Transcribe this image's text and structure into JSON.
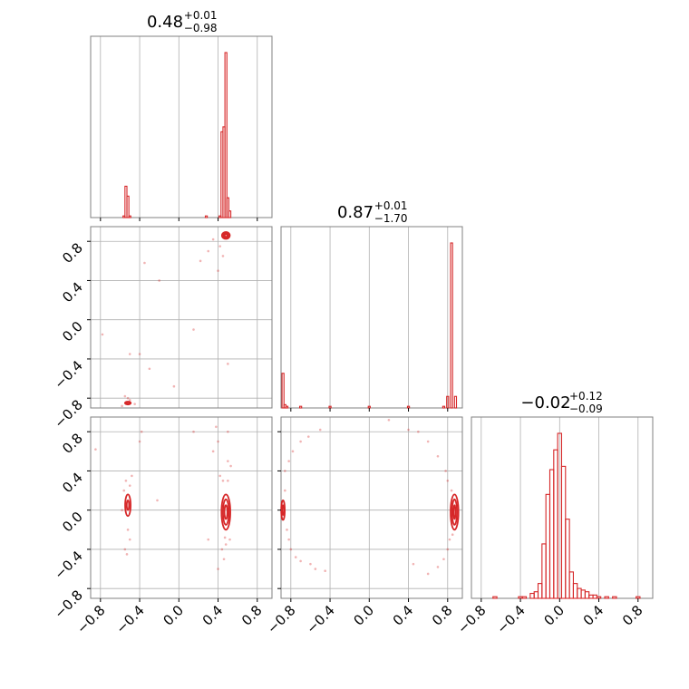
{
  "chart_data": {
    "type": "corner",
    "color": "#d62728",
    "grid": true,
    "axes_range": [
      -0.9,
      0.95
    ],
    "ticks": [
      -0.8,
      -0.4,
      0.0,
      0.4,
      0.8
    ],
    "tick_labels": [
      "−0.8",
      "−0.4",
      "0.0",
      "0.4",
      "0.8"
    ],
    "titles": [
      {
        "param": 1,
        "main": "0.48",
        "plus": "+0.01",
        "minus": "−0.98"
      },
      {
        "param": 2,
        "main": "0.87",
        "plus": "+0.01",
        "minus": "−1.70"
      },
      {
        "param": 3,
        "main": "−0.02",
        "plus": "+0.12",
        "minus": "−0.09"
      }
    ],
    "histograms": [
      {
        "param": 1,
        "bins": [
          {
            "x": -0.56,
            "v": 0.01
          },
          {
            "x": -0.54,
            "v": 0.19
          },
          {
            "x": -0.52,
            "v": 0.13
          },
          {
            "x": -0.5,
            "v": 0.01
          },
          {
            "x": 0.28,
            "v": 0.01
          },
          {
            "x": 0.42,
            "v": 0.01
          },
          {
            "x": 0.44,
            "v": 0.52
          },
          {
            "x": 0.46,
            "v": 0.55
          },
          {
            "x": 0.48,
            "v": 1.0
          },
          {
            "x": 0.5,
            "v": 0.12
          },
          {
            "x": 0.52,
            "v": 0.04
          }
        ]
      },
      {
        "param": 2,
        "bins": [
          {
            "x": -0.88,
            "v": 0.21
          },
          {
            "x": -0.86,
            "v": 0.02
          },
          {
            "x": -0.84,
            "v": 0.01
          },
          {
            "x": -0.7,
            "v": 0.01
          },
          {
            "x": -0.4,
            "v": 0.01
          },
          {
            "x": 0.0,
            "v": 0.01
          },
          {
            "x": 0.4,
            "v": 0.01
          },
          {
            "x": 0.76,
            "v": 0.01
          },
          {
            "x": 0.8,
            "v": 0.07
          },
          {
            "x": 0.84,
            "v": 1.0
          },
          {
            "x": 0.88,
            "v": 0.07
          }
        ]
      },
      {
        "param": 3,
        "bins": [
          {
            "x": -0.66,
            "v": 0.01
          },
          {
            "x": -0.4,
            "v": 0.01
          },
          {
            "x": -0.36,
            "v": 0.01
          },
          {
            "x": -0.28,
            "v": 0.03
          },
          {
            "x": -0.24,
            "v": 0.04
          },
          {
            "x": -0.2,
            "v": 0.09
          },
          {
            "x": -0.16,
            "v": 0.33
          },
          {
            "x": -0.12,
            "v": 0.63
          },
          {
            "x": -0.08,
            "v": 0.78
          },
          {
            "x": -0.04,
            "v": 0.9
          },
          {
            "x": 0.0,
            "v": 1.0
          },
          {
            "x": 0.04,
            "v": 0.8
          },
          {
            "x": 0.08,
            "v": 0.48
          },
          {
            "x": 0.12,
            "v": 0.16
          },
          {
            "x": 0.16,
            "v": 0.09
          },
          {
            "x": 0.2,
            "v": 0.06
          },
          {
            "x": 0.24,
            "v": 0.05
          },
          {
            "x": 0.28,
            "v": 0.04
          },
          {
            "x": 0.32,
            "v": 0.02
          },
          {
            "x": 0.36,
            "v": 0.02
          },
          {
            "x": 0.4,
            "v": 0.01
          },
          {
            "x": 0.48,
            "v": 0.01
          },
          {
            "x": 0.56,
            "v": 0.01
          },
          {
            "x": 0.8,
            "v": 0.01
          }
        ]
      }
    ],
    "bin_width": 0.02,
    "bin_width_param3": 0.04,
    "contours": [
      {
        "panel": "2v1",
        "cx": 0.48,
        "cy": 0.86,
        "rx": [
          0.012,
          0.025,
          0.04
        ],
        "ry": [
          0.015,
          0.025,
          0.035
        ]
      },
      {
        "panel": "2v1",
        "cx": -0.52,
        "cy": -0.85,
        "rx": [
          0.015,
          0.03
        ],
        "ry": [
          0.008,
          0.015
        ]
      },
      {
        "panel": "3v1",
        "cx": -0.52,
        "cy": 0.05,
        "rx": [
          0.012,
          0.028
        ],
        "ry": [
          0.05,
          0.11
        ]
      },
      {
        "panel": "3v1",
        "cx": 0.48,
        "cy": -0.02,
        "rx": [
          0.015,
          0.03,
          0.045
        ],
        "ry": [
          0.07,
          0.13,
          0.18
        ]
      },
      {
        "panel": "3v2",
        "cx": -0.88,
        "cy": 0.0,
        "rx": [
          0.008,
          0.018
        ],
        "ry": [
          0.05,
          0.1
        ]
      },
      {
        "panel": "3v2",
        "cx": 0.87,
        "cy": -0.02,
        "rx": [
          0.01,
          0.025,
          0.04
        ],
        "ry": [
          0.07,
          0.13,
          0.18
        ]
      }
    ],
    "scatter": {
      "2v1": [
        [
          -0.55,
          -0.78
        ],
        [
          -0.5,
          -0.82
        ],
        [
          -0.58,
          -0.88
        ],
        [
          -0.45,
          -0.86
        ],
        [
          -0.4,
          -0.35
        ],
        [
          -0.5,
          -0.35
        ],
        [
          -0.78,
          -0.15
        ],
        [
          -0.3,
          -0.5
        ],
        [
          -0.35,
          0.58
        ],
        [
          -0.2,
          0.4
        ],
        [
          -0.05,
          -0.68
        ],
        [
          0.22,
          0.6
        ],
        [
          0.35,
          0.82
        ],
        [
          0.4,
          0.5
        ],
        [
          0.45,
          0.65
        ],
        [
          0.42,
          0.75
        ],
        [
          0.3,
          0.7
        ],
        [
          0.5,
          -0.45
        ],
        [
          0.15,
          -0.1
        ],
        [
          -0.52,
          -0.8
        ]
      ],
      "3v1": [
        [
          -0.55,
          -0.4
        ],
        [
          -0.5,
          -0.3
        ],
        [
          -0.52,
          -0.2
        ],
        [
          -0.54,
          0.3
        ],
        [
          -0.48,
          0.35
        ],
        [
          -0.53,
          -0.45
        ],
        [
          -0.56,
          0.2
        ],
        [
          -0.5,
          0.25
        ],
        [
          -0.4,
          0.7
        ],
        [
          -0.38,
          0.8
        ],
        [
          -0.22,
          0.1
        ],
        [
          0.15,
          0.8
        ],
        [
          0.35,
          0.6
        ],
        [
          0.38,
          0.85
        ],
        [
          0.4,
          0.7
        ],
        [
          0.42,
          0.35
        ],
        [
          0.45,
          0.3
        ],
        [
          0.5,
          0.3
        ],
        [
          0.52,
          -0.3
        ],
        [
          0.48,
          -0.35
        ],
        [
          0.44,
          -0.4
        ],
        [
          0.46,
          -0.5
        ],
        [
          0.3,
          -0.3
        ],
        [
          -0.58,
          0.0
        ],
        [
          -0.85,
          0.62
        ],
        [
          0.5,
          0.5
        ],
        [
          0.53,
          0.45
        ],
        [
          0.47,
          -0.28
        ],
        [
          0.4,
          -0.6
        ],
        [
          0.5,
          0.8
        ]
      ],
      "3v2": [
        [
          -0.86,
          0.2
        ],
        [
          -0.84,
          -0.2
        ],
        [
          -0.82,
          -0.3
        ],
        [
          -0.8,
          -0.4
        ],
        [
          -0.75,
          -0.48
        ],
        [
          -0.7,
          -0.52
        ],
        [
          -0.6,
          -0.55
        ],
        [
          -0.55,
          -0.6
        ],
        [
          -0.45,
          -0.62
        ],
        [
          -0.86,
          0.4
        ],
        [
          -0.82,
          0.5
        ],
        [
          -0.78,
          0.6
        ],
        [
          -0.7,
          0.7
        ],
        [
          -0.62,
          0.75
        ],
        [
          -0.5,
          0.82
        ],
        [
          0.2,
          0.92
        ],
        [
          0.4,
          0.82
        ],
        [
          0.5,
          0.8
        ],
        [
          0.6,
          0.7
        ],
        [
          0.7,
          0.55
        ],
        [
          0.78,
          0.4
        ],
        [
          0.8,
          0.3
        ],
        [
          0.82,
          -0.3
        ],
        [
          0.8,
          -0.4
        ],
        [
          0.76,
          -0.5
        ],
        [
          0.7,
          -0.58
        ],
        [
          0.6,
          -0.65
        ],
        [
          0.45,
          -0.55
        ],
        [
          0.84,
          0.2
        ],
        [
          0.85,
          -0.25
        ]
      ]
    }
  }
}
